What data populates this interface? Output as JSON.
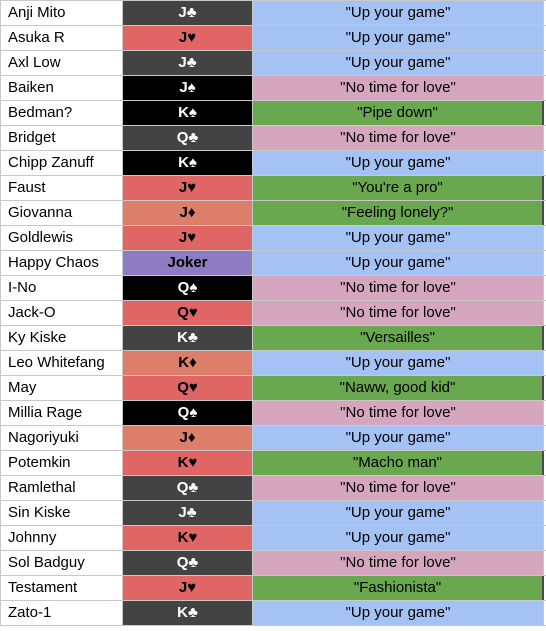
{
  "colors": {
    "card_gray": "#434343",
    "card_red": "#e06666",
    "card_black": "#000000",
    "card_salmon": "#dd7e6b",
    "card_purple": "#8e7cc3",
    "quote_blue": "#a4c2f4",
    "quote_pink": "#d5a6bd",
    "quote_green": "#6aa84f"
  },
  "rows": [
    {
      "name": "Anji Mito",
      "card": "J♣",
      "card_color": "#434343",
      "card_text": "#ffffff",
      "quote": "\"Up your game\"",
      "quote_color": "#a4c2f4"
    },
    {
      "name": "Asuka R",
      "card": "J♥",
      "card_color": "#e06666",
      "card_text": "#000000",
      "quote": "\"Up your game\"",
      "quote_color": "#a4c2f4"
    },
    {
      "name": "Axl Low",
      "card": "J♣",
      "card_color": "#434343",
      "card_text": "#ffffff",
      "quote": "\"Up your game\"",
      "quote_color": "#a4c2f4"
    },
    {
      "name": "Baiken",
      "card": "J♠",
      "card_color": "#000000",
      "card_text": "#ffffff",
      "quote": "\"No time for love\"",
      "quote_color": "#d5a6bd"
    },
    {
      "name": "Bedman?",
      "card": "K♠",
      "card_color": "#000000",
      "card_text": "#ffffff",
      "quote": "\"Pipe down\"",
      "quote_color": "#6aa84f"
    },
    {
      "name": "Bridget",
      "card": "Q♣",
      "card_color": "#434343",
      "card_text": "#ffffff",
      "quote": "\"No time for love\"",
      "quote_color": "#d5a6bd"
    },
    {
      "name": "Chipp Zanuff",
      "card": "K♠",
      "card_color": "#000000",
      "card_text": "#ffffff",
      "quote": "\"Up your game\"",
      "quote_color": "#a4c2f4"
    },
    {
      "name": "Faust",
      "card": "J♥",
      "card_color": "#e06666",
      "card_text": "#000000",
      "quote": "\"You're a pro\"",
      "quote_color": "#6aa84f"
    },
    {
      "name": "Giovanna",
      "card": "J♦",
      "card_color": "#dd7e6b",
      "card_text": "#000000",
      "quote": "\"Feeling lonely?\"",
      "quote_color": "#6aa84f"
    },
    {
      "name": "Goldlewis",
      "card": "J♥",
      "card_color": "#e06666",
      "card_text": "#000000",
      "quote": "\"Up your game\"",
      "quote_color": "#a4c2f4"
    },
    {
      "name": "Happy Chaos",
      "card": "Joker",
      "card_color": "#8e7cc3",
      "card_text": "#000000",
      "quote": "\"Up your game\"",
      "quote_color": "#a4c2f4"
    },
    {
      "name": "I-No",
      "card": "Q♠",
      "card_color": "#000000",
      "card_text": "#ffffff",
      "quote": "\"No time for love\"",
      "quote_color": "#d5a6bd"
    },
    {
      "name": "Jack-O",
      "card": "Q♥",
      "card_color": "#e06666",
      "card_text": "#000000",
      "quote": "\"No time for love\"",
      "quote_color": "#d5a6bd"
    },
    {
      "name": "Ky Kiske",
      "card": "K♣",
      "card_color": "#434343",
      "card_text": "#ffffff",
      "quote": "\"Versailles\"",
      "quote_color": "#6aa84f"
    },
    {
      "name": "Leo Whitefang",
      "card": "K♦",
      "card_color": "#dd7e6b",
      "card_text": "#000000",
      "quote": "\"Up your game\"",
      "quote_color": "#a4c2f4"
    },
    {
      "name": "May",
      "card": "Q♥",
      "card_color": "#e06666",
      "card_text": "#000000",
      "quote": "\"Naww, good kid\"",
      "quote_color": "#6aa84f"
    },
    {
      "name": "Millia Rage",
      "card": "Q♠",
      "card_color": "#000000",
      "card_text": "#ffffff",
      "quote": "\"No time for love\"",
      "quote_color": "#d5a6bd"
    },
    {
      "name": "Nagoriyuki",
      "card": "J♦",
      "card_color": "#dd7e6b",
      "card_text": "#000000",
      "quote": "\"Up your game\"",
      "quote_color": "#a4c2f4"
    },
    {
      "name": "Potemkin",
      "card": "K♥",
      "card_color": "#e06666",
      "card_text": "#000000",
      "quote": "\"Macho man\"",
      "quote_color": "#6aa84f"
    },
    {
      "name": "Ramlethal",
      "card": "Q♣",
      "card_color": "#434343",
      "card_text": "#ffffff",
      "quote": "\"No time for love\"",
      "quote_color": "#d5a6bd"
    },
    {
      "name": "Sin Kiske",
      "card": "J♣",
      "card_color": "#434343",
      "card_text": "#ffffff",
      "quote": "\"Up your game\"",
      "quote_color": "#a4c2f4"
    },
    {
      "name": "Johnny",
      "card": "K♥",
      "card_color": "#e06666",
      "card_text": "#000000",
      "quote": "\"Up your game\"",
      "quote_color": "#a4c2f4"
    },
    {
      "name": "Sol Badguy",
      "card": "Q♣",
      "card_color": "#434343",
      "card_text": "#ffffff",
      "quote": "\"No time for love\"",
      "quote_color": "#d5a6bd"
    },
    {
      "name": "Testament",
      "card": "J♥",
      "card_color": "#e06666",
      "card_text": "#000000",
      "quote": "\"Fashionista\"",
      "quote_color": "#6aa84f"
    },
    {
      "name": "Zato-1",
      "card": "K♣",
      "card_color": "#434343",
      "card_text": "#ffffff",
      "quote": "\"Up your game\"",
      "quote_color": "#a4c2f4"
    }
  ]
}
